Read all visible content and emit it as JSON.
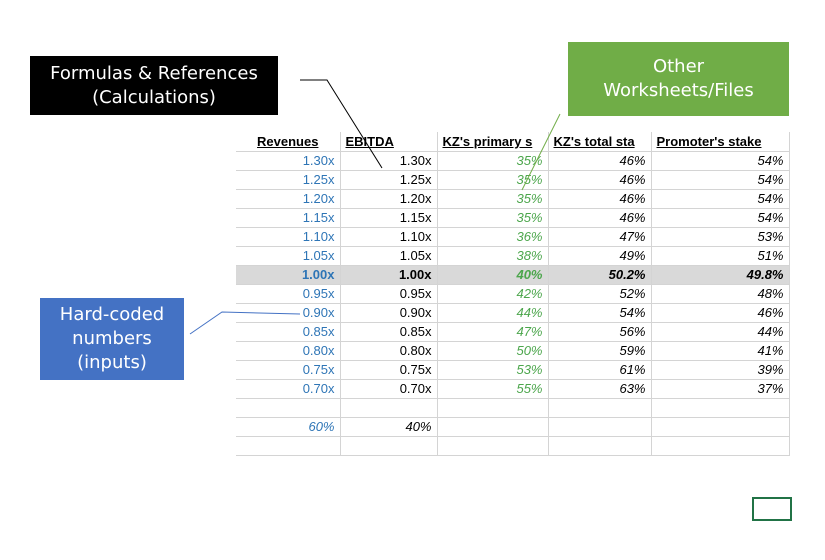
{
  "callouts": {
    "formulas": {
      "line1": "Formulas & References",
      "line2": "(Calculations)"
    },
    "other": {
      "line1": "Other",
      "line2": "Worksheets/Files"
    },
    "hard": {
      "line1": "Hard-coded",
      "line2": "numbers",
      "line3": "(inputs)"
    }
  },
  "sheet": {
    "headers": [
      "Revenues",
      "EBITDA",
      "KZ's primary s",
      "KZ's total sta",
      "Promoter's stake"
    ],
    "rows": [
      [
        "1.30x",
        "1.30x",
        "35%",
        "46%",
        "54%"
      ],
      [
        "1.25x",
        "1.25x",
        "35%",
        "46%",
        "54%"
      ],
      [
        "1.20x",
        "1.20x",
        "35%",
        "46%",
        "54%"
      ],
      [
        "1.15x",
        "1.15x",
        "35%",
        "46%",
        "54%"
      ],
      [
        "1.10x",
        "1.10x",
        "36%",
        "47%",
        "53%"
      ],
      [
        "1.05x",
        "1.05x",
        "38%",
        "49%",
        "51%"
      ],
      [
        "1.00x",
        "1.00x",
        "40%",
        "50.2%",
        "49.8%"
      ],
      [
        "0.95x",
        "0.95x",
        "42%",
        "52%",
        "48%"
      ],
      [
        "0.90x",
        "0.90x",
        "44%",
        "54%",
        "46%"
      ],
      [
        "0.85x",
        "0.85x",
        "47%",
        "56%",
        "44%"
      ],
      [
        "0.80x",
        "0.80x",
        "50%",
        "59%",
        "41%"
      ],
      [
        "0.75x",
        "0.75x",
        "53%",
        "61%",
        "39%"
      ],
      [
        "0.70x",
        "0.70x",
        "55%",
        "63%",
        "37%"
      ]
    ],
    "highlight_row_index": 6,
    "weights": [
      "60%",
      "40%"
    ]
  }
}
